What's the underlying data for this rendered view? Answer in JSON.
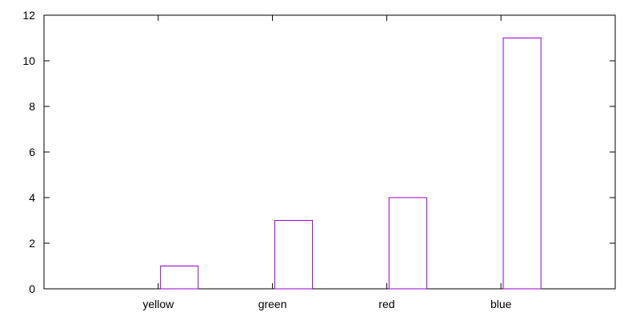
{
  "chart_data": {
    "type": "bar",
    "categories": [
      "yellow",
      "green",
      "red",
      "blue"
    ],
    "values": [
      1,
      3,
      4,
      11
    ],
    "ylim": [
      0,
      12
    ],
    "yticks": [
      "0",
      "2",
      "4",
      "6",
      "8",
      "10",
      "12"
    ],
    "grid": false,
    "legend": "none",
    "bar_color": "#9400d3",
    "frame_color": "#000000"
  }
}
